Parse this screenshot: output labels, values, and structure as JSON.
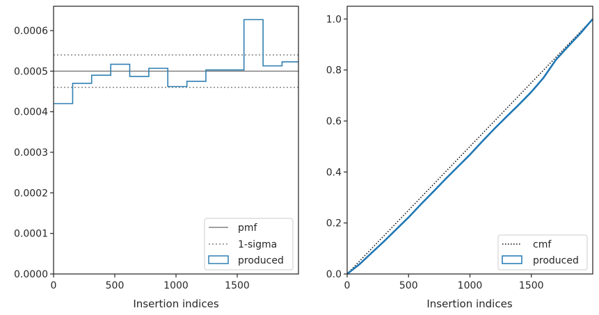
{
  "chart_data": [
    {
      "type": "histogram",
      "xlabel": "Insertion indices",
      "ylabel": "",
      "xlim": [
        0,
        2000
      ],
      "ylim": [
        0,
        0.00066
      ],
      "xticks": [
        0,
        500,
        1000,
        1500
      ],
      "xtick_labels": [
        "0",
        "500",
        "1000",
        "1500"
      ],
      "yticks": [
        0,
        0.0001,
        0.0002,
        0.0003,
        0.0004,
        0.0005,
        0.0006
      ],
      "ytick_labels": [
        "0.0000",
        "0.0001",
        "0.0002",
        "0.0003",
        "0.0004",
        "0.0005",
        "0.0006"
      ],
      "bin_edges": [
        0,
        156,
        311,
        467,
        622,
        778,
        933,
        1089,
        1244,
        1400,
        1555,
        1711,
        1866,
        2000
      ],
      "produced_values": [
        0.00042,
        0.00047,
        0.00049,
        0.000517,
        0.000487,
        0.000507,
        0.000462,
        0.000475,
        0.000503,
        0.000503,
        0.000627,
        0.000513,
        0.000523
      ],
      "pmf": 0.0005,
      "sigma_band": [
        0.00046,
        0.00054
      ],
      "legend": {
        "position": "lower-right",
        "entries": [
          "pmf",
          "1-sigma",
          "produced"
        ]
      },
      "colors": {
        "produced": "#2f7fb2",
        "pmf": "#808080",
        "sigma": "#808080"
      }
    },
    {
      "type": "line",
      "xlabel": "Insertion indices",
      "ylabel": "",
      "xlim": [
        0,
        2000
      ],
      "ylim": [
        0,
        1.05
      ],
      "xticks": [
        0,
        500,
        1000,
        1500
      ],
      "xtick_labels": [
        "0",
        "500",
        "1000",
        "1500"
      ],
      "yticks": [
        0,
        0.2,
        0.4,
        0.6,
        0.8,
        1.0
      ],
      "ytick_labels": [
        "0.0",
        "0.2",
        "0.4",
        "0.6",
        "0.8",
        "1.0"
      ],
      "cmf": {
        "x": [
          0,
          2000
        ],
        "y": [
          0,
          1.0
        ]
      },
      "produced": {
        "x": [
          0,
          100,
          200,
          300,
          400,
          500,
          600,
          700,
          800,
          900,
          1000,
          1100,
          1200,
          1300,
          1400,
          1500,
          1600,
          1700,
          1800,
          1900,
          2000
        ],
        "y": [
          0,
          0.038,
          0.083,
          0.128,
          0.175,
          0.222,
          0.273,
          0.322,
          0.372,
          0.42,
          0.468,
          0.52,
          0.57,
          0.618,
          0.665,
          0.714,
          0.77,
          0.84,
          0.893,
          0.944,
          1.0
        ]
      },
      "legend": {
        "position": "lower-right",
        "entries": [
          "cmf",
          "produced"
        ]
      },
      "colors": {
        "produced": "#1f77b4",
        "cmf": "#000000"
      }
    }
  ]
}
